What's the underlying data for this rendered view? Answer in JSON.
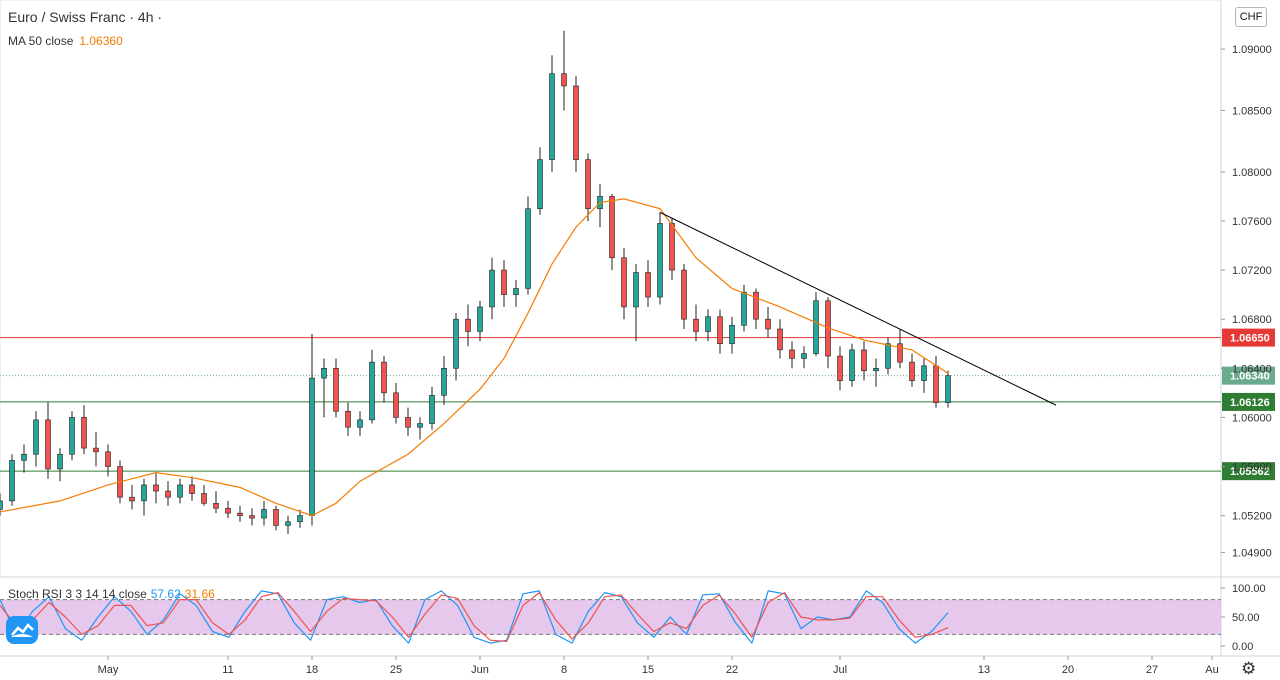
{
  "header": {
    "title": "Euro / Swiss Franc · 4h ·",
    "ma_label": "MA 50 close",
    "ma_value": "1.06360",
    "currency": "CHF"
  },
  "indicator": {
    "label": "Stoch RSI 3 3 14 14 close",
    "k_value": "57.62",
    "d_value": "31.66"
  },
  "colors": {
    "up": "#26a69a",
    "down": "#ef5350",
    "ma": "#f57c00",
    "resistance": "#e53935",
    "support": "#2e7d32",
    "current": "#6aab8f",
    "stoch_k": "#2196f3",
    "stoch_d": "#ef5350",
    "stoch_band": "#e1bee7"
  },
  "icons": {
    "logo": "tradingview-logo-icon",
    "settings": "gear-icon"
  },
  "chart_data": [
    {
      "type": "candlestick",
      "ylim": [
        1.047,
        1.094
      ],
      "yticks": [
        "1.09000",
        "1.08500",
        "1.08000",
        "1.07600",
        "1.07200",
        "1.06800",
        "1.06400",
        "1.06000",
        "1.05600",
        "1.05200",
        "1.04900"
      ],
      "ytick_values": [
        1.09,
        1.085,
        1.08,
        1.076,
        1.072,
        1.068,
        1.064,
        1.06,
        1.056,
        1.052,
        1.049
      ],
      "xticks": [
        "May",
        "11",
        "18",
        "25",
        "Jun",
        "8",
        "15",
        "22",
        "Jul",
        "13",
        "20",
        "27",
        "Au"
      ],
      "xtick_dates": [
        "2020-05-01",
        "2020-05-11",
        "2020-05-18",
        "2020-05-25",
        "2020-06-01",
        "2020-06-08",
        "2020-06-15",
        "2020-06-22",
        "2020-07-01",
        "2020-07-13",
        "2020-07-20",
        "2020-07-27",
        "2020-08-01"
      ],
      "series": [
        {
          "name": "MA 50 close",
          "kind": "line",
          "points": [
            [
              "2020-04-22",
              1.0523
            ],
            [
              "2020-04-27",
              1.0532
            ],
            [
              "2020-05-01",
              1.0545
            ],
            [
              "2020-05-05",
              1.0555
            ],
            [
              "2020-05-08",
              1.0551
            ],
            [
              "2020-05-12",
              1.0543
            ],
            [
              "2020-05-15",
              1.053
            ],
            [
              "2020-05-18",
              1.052
            ],
            [
              "2020-05-20",
              1.053
            ],
            [
              "2020-05-22",
              1.0548
            ],
            [
              "2020-05-26",
              1.057
            ],
            [
              "2020-05-29",
              1.0595
            ],
            [
              "2020-06-01",
              1.0623
            ],
            [
              "2020-06-03",
              1.0648
            ],
            [
              "2020-06-05",
              1.0685
            ],
            [
              "2020-06-07",
              1.0725
            ],
            [
              "2020-06-09",
              1.0755
            ],
            [
              "2020-06-11",
              1.0775
            ],
            [
              "2020-06-13",
              1.0778
            ],
            [
              "2020-06-16",
              1.077
            ],
            [
              "2020-06-19",
              1.073
            ],
            [
              "2020-06-22",
              1.0705
            ],
            [
              "2020-06-26",
              1.069
            ],
            [
              "2020-06-30",
              1.0673
            ],
            [
              "2020-07-03",
              1.0663
            ],
            [
              "2020-07-07",
              1.0655
            ],
            [
              "2020-07-10",
              1.0636
            ]
          ]
        },
        {
          "name": "Trendline",
          "kind": "line",
          "points": [
            [
              "2020-06-16",
              1.0767
            ],
            [
              "2020-07-19",
              1.061
            ]
          ]
        }
      ],
      "horizontal_levels": [
        {
          "label": "1.06650",
          "value": 1.0665,
          "color": "#e53935"
        },
        {
          "label": "1.06340",
          "value": 1.0634,
          "color": "#6aab8f"
        },
        {
          "label": "1.06126",
          "value": 1.06126,
          "color": "#2e7d32"
        },
        {
          "label": "1.05562",
          "value": 1.05562,
          "color": "#2e7d32"
        }
      ],
      "candles": [
        [
          "2020-04-22",
          1.0525,
          1.0538,
          1.052,
          1.0532
        ],
        [
          "2020-04-23",
          1.0532,
          1.057,
          1.0528,
          1.0565
        ],
        [
          "2020-04-24",
          1.0565,
          1.0578,
          1.0555,
          1.057
        ],
        [
          "2020-04-25",
          1.057,
          1.0605,
          1.056,
          1.0598
        ],
        [
          "2020-04-26",
          1.0598,
          1.0612,
          1.055,
          1.0558
        ],
        [
          "2020-04-27",
          1.0558,
          1.0575,
          1.0548,
          1.057
        ],
        [
          "2020-04-28",
          1.057,
          1.0605,
          1.0565,
          1.06
        ],
        [
          "2020-04-29",
          1.06,
          1.061,
          1.057,
          1.0575
        ],
        [
          "2020-04-30",
          1.0575,
          1.0588,
          1.056,
          1.0572
        ],
        [
          "2020-05-01",
          1.0572,
          1.0578,
          1.0552,
          1.056
        ],
        [
          "2020-05-02",
          1.056,
          1.0565,
          1.053,
          1.0535
        ],
        [
          "2020-05-03",
          1.0535,
          1.0545,
          1.0525,
          1.0532
        ],
        [
          "2020-05-04",
          1.0532,
          1.055,
          1.052,
          1.0545
        ],
        [
          "2020-05-05",
          1.0545,
          1.0555,
          1.053,
          1.054
        ],
        [
          "2020-05-06",
          1.054,
          1.0548,
          1.0528,
          1.0535
        ],
        [
          "2020-05-07",
          1.0535,
          1.055,
          1.053,
          1.0545
        ],
        [
          "2020-05-08",
          1.0545,
          1.0552,
          1.0532,
          1.0538
        ],
        [
          "2020-05-09",
          1.0538,
          1.0545,
          1.0528,
          1.053
        ],
        [
          "2020-05-10",
          1.053,
          1.054,
          1.0522,
          1.0526
        ],
        [
          "2020-05-11",
          1.0526,
          1.0532,
          1.0518,
          1.0522
        ],
        [
          "2020-05-12",
          1.0522,
          1.0528,
          1.0515,
          1.052
        ],
        [
          "2020-05-13",
          1.052,
          1.0526,
          1.0512,
          1.0518
        ],
        [
          "2020-05-14",
          1.0518,
          1.0532,
          1.0512,
          1.0525
        ],
        [
          "2020-05-15",
          1.0525,
          1.0528,
          1.0508,
          1.0512
        ],
        [
          "2020-05-16",
          1.0512,
          1.052,
          1.0505,
          1.0515
        ],
        [
          "2020-05-17",
          1.0515,
          1.0525,
          1.051,
          1.052
        ],
        [
          "2020-05-18",
          1.052,
          1.0668,
          1.0512,
          1.0632
        ],
        [
          "2020-05-19",
          1.0632,
          1.0648,
          1.06,
          1.064
        ],
        [
          "2020-05-20",
          1.064,
          1.0648,
          1.06,
          1.0605
        ],
        [
          "2020-05-21",
          1.0605,
          1.0612,
          1.0585,
          1.0592
        ],
        [
          "2020-05-22",
          1.0592,
          1.0605,
          1.0585,
          1.0598
        ],
        [
          "2020-05-23",
          1.0598,
          1.0655,
          1.0595,
          1.0645
        ],
        [
          "2020-05-24",
          1.0645,
          1.065,
          1.0612,
          1.062
        ],
        [
          "2020-05-25",
          1.062,
          1.0628,
          1.0595,
          1.06
        ],
        [
          "2020-05-26",
          1.06,
          1.0608,
          1.0585,
          1.0592
        ],
        [
          "2020-05-27",
          1.0592,
          1.06,
          1.0582,
          1.0595
        ],
        [
          "2020-05-28",
          1.0595,
          1.0625,
          1.059,
          1.0618
        ],
        [
          "2020-05-29",
          1.0618,
          1.065,
          1.061,
          1.064
        ],
        [
          "2020-05-30",
          1.064,
          1.0685,
          1.063,
          1.068
        ],
        [
          "2020-05-31",
          1.068,
          1.0692,
          1.0658,
          1.067
        ],
        [
          "2020-06-01",
          1.067,
          1.0695,
          1.0662,
          1.069
        ],
        [
          "2020-06-02",
          1.069,
          1.073,
          1.068,
          1.072
        ],
        [
          "2020-06-03",
          1.072,
          1.0728,
          1.069,
          1.07
        ],
        [
          "2020-06-04",
          1.07,
          1.0712,
          1.069,
          1.0705
        ],
        [
          "2020-06-05",
          1.0705,
          1.078,
          1.07,
          1.077
        ],
        [
          "2020-06-06",
          1.077,
          1.082,
          1.0765,
          1.081
        ],
        [
          "2020-06-07",
          1.081,
          1.0895,
          1.08,
          1.088
        ],
        [
          "2020-06-08",
          1.088,
          1.0915,
          1.085,
          1.087
        ],
        [
          "2020-06-09",
          1.087,
          1.0878,
          1.08,
          1.081
        ],
        [
          "2020-06-10",
          1.081,
          1.0815,
          1.076,
          1.077
        ],
        [
          "2020-06-11",
          1.077,
          1.079,
          1.0755,
          1.078
        ],
        [
          "2020-06-12",
          1.078,
          1.0782,
          1.072,
          1.073
        ],
        [
          "2020-06-13",
          1.073,
          1.0738,
          1.068,
          1.069
        ],
        [
          "2020-06-14",
          1.069,
          1.0725,
          1.0662,
          1.0718
        ],
        [
          "2020-06-15",
          1.0718,
          1.0728,
          1.069,
          1.0698
        ],
        [
          "2020-06-16",
          1.0698,
          1.0767,
          1.0692,
          1.0758
        ],
        [
          "2020-06-17",
          1.0758,
          1.0762,
          1.0712,
          1.072
        ],
        [
          "2020-06-18",
          1.072,
          1.0725,
          1.0672,
          1.068
        ],
        [
          "2020-06-19",
          1.068,
          1.0692,
          1.0662,
          1.067
        ],
        [
          "2020-06-20",
          1.067,
          1.0688,
          1.0662,
          1.0682
        ],
        [
          "2020-06-21",
          1.0682,
          1.0688,
          1.0652,
          1.066
        ],
        [
          "2020-06-22",
          1.066,
          1.0682,
          1.0652,
          1.0675
        ],
        [
          "2020-06-23",
          1.0675,
          1.0708,
          1.067,
          1.0702
        ],
        [
          "2020-06-24",
          1.0702,
          1.0705,
          1.0672,
          1.068
        ],
        [
          "2020-06-25",
          1.068,
          1.069,
          1.0665,
          1.0672
        ],
        [
          "2020-06-26",
          1.0672,
          1.068,
          1.0648,
          1.0655
        ],
        [
          "2020-06-27",
          1.0655,
          1.0662,
          1.064,
          1.0648
        ],
        [
          "2020-06-28",
          1.0648,
          1.0658,
          1.064,
          1.0652
        ],
        [
          "2020-06-29",
          1.0652,
          1.0702,
          1.065,
          1.0695
        ],
        [
          "2020-06-30",
          1.0695,
          1.0698,
          1.064,
          1.065
        ],
        [
          "2020-07-01",
          1.065,
          1.0658,
          1.0622,
          1.063
        ],
        [
          "2020-07-02",
          1.063,
          1.066,
          1.0625,
          1.0655
        ],
        [
          "2020-07-03",
          1.0655,
          1.0662,
          1.063,
          1.0638
        ],
        [
          "2020-07-04",
          1.0638,
          1.0648,
          1.0625,
          1.064
        ],
        [
          "2020-07-05",
          1.064,
          1.0665,
          1.0635,
          1.066
        ],
        [
          "2020-07-06",
          1.066,
          1.0672,
          1.064,
          1.0645
        ],
        [
          "2020-07-07",
          1.0645,
          1.0652,
          1.0625,
          1.063
        ],
        [
          "2020-07-08",
          1.063,
          1.0648,
          1.062,
          1.0642
        ],
        [
          "2020-07-09",
          1.0642,
          1.065,
          1.0608,
          1.0612
        ],
        [
          "2020-07-10",
          1.0612,
          1.0638,
          1.0608,
          1.0634
        ]
      ]
    },
    {
      "type": "line",
      "title": "Stoch RSI 3 3 14 14 close",
      "ylim": [
        0,
        100
      ],
      "yticks": [
        "100.00",
        "50.00",
        "0.00"
      ],
      "ytick_values": [
        100,
        50,
        0
      ],
      "band": [
        20,
        80
      ],
      "series": [
        {
          "name": "K",
          "values": [
            80,
            20,
            60,
            85,
            30,
            10,
            50,
            85,
            60,
            20,
            45,
            90,
            70,
            25,
            15,
            60,
            95,
            90,
            40,
            10,
            80,
            85,
            75,
            80,
            35,
            5,
            80,
            95,
            70,
            15,
            5,
            10,
            90,
            95,
            20,
            5,
            60,
            92,
            85,
            40,
            15,
            50,
            20,
            88,
            90,
            40,
            5,
            95,
            90,
            30,
            50,
            45,
            50,
            95,
            75,
            30,
            5,
            25,
            57.62
          ]
        },
        {
          "name": "D",
          "values": [
            70,
            35,
            45,
            75,
            50,
            20,
            35,
            70,
            70,
            35,
            40,
            80,
            80,
            40,
            20,
            45,
            85,
            92,
            60,
            25,
            60,
            82,
            80,
            78,
            50,
            15,
            55,
            88,
            82,
            35,
            10,
            8,
            70,
            92,
            45,
            12,
            40,
            85,
            88,
            55,
            25,
            40,
            30,
            70,
            88,
            55,
            15,
            75,
            92,
            50,
            45,
            45,
            48,
            85,
            85,
            45,
            15,
            20,
            31.66
          ]
        }
      ]
    }
  ]
}
